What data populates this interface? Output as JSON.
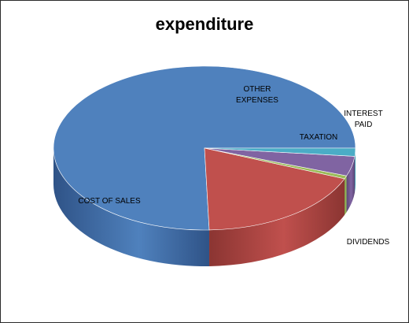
{
  "chart_data": {
    "type": "pie",
    "title": "expenditure",
    "slices": [
      {
        "label": "COST OF SALES",
        "value": 75.5,
        "color": "#4F81BD",
        "side_color": "#2F5387"
      },
      {
        "label": "OTHER EXPENSES",
        "value": 18.4,
        "color": "#C0504D",
        "side_color": "#8B3532"
      },
      {
        "label": "INTEREST PAID",
        "value": 0.6,
        "color": "#9BBB59",
        "side_color": "#6E8A3C"
      },
      {
        "label": "TAXATION",
        "value": 3.9,
        "color": "#8064A2",
        "side_color": "#5C4777"
      },
      {
        "label": "DIVIDENDS",
        "value": 1.6,
        "color": "#4BACC6",
        "side_color": "#2C7D92"
      }
    ],
    "legend": "none",
    "start_angle_deg": 0,
    "direction": "counter-clockwise",
    "three_d": true
  }
}
